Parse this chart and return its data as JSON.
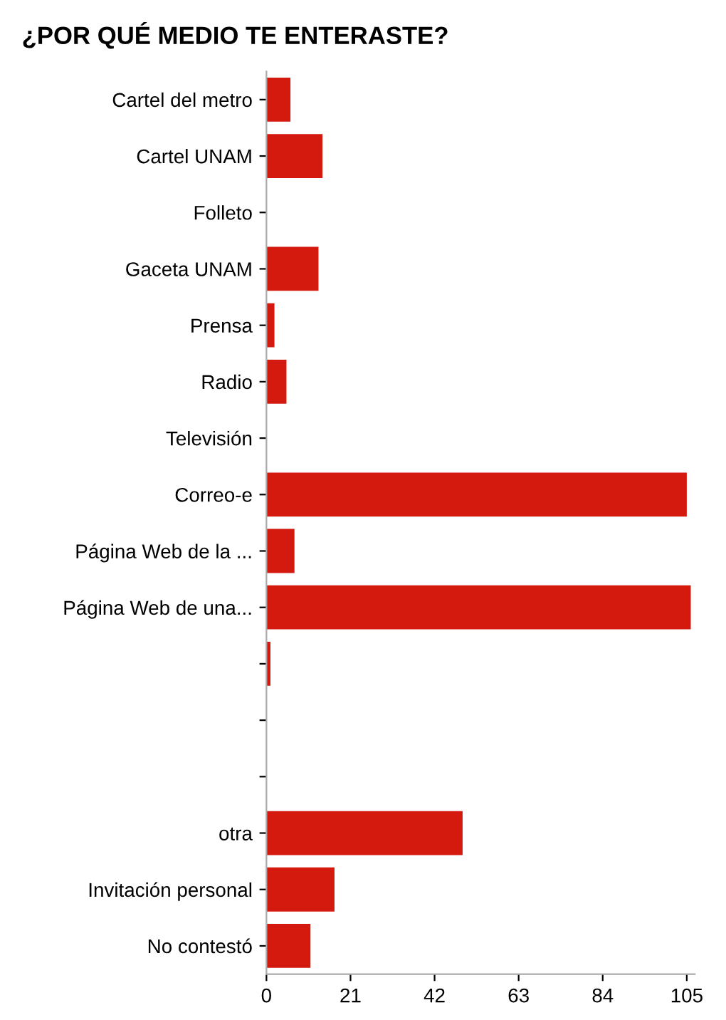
{
  "chart_data": {
    "type": "bar",
    "orientation": "horizontal",
    "title": "¿POR QUÉ MEDIO TE ENTERASTE?",
    "categories": [
      "Cartel del metro",
      "Cartel UNAM",
      "Folleto",
      "Gaceta UNAM",
      "Prensa",
      "Radio",
      "Televisión",
      "Correo-e",
      "Página Web de la ...",
      "Página Web de una...",
      null,
      null,
      null,
      "otra",
      "Invitación personal",
      "No contestó"
    ],
    "values": [
      6,
      14,
      0,
      13,
      2,
      5,
      0,
      105,
      7,
      106,
      1,
      0,
      0,
      49,
      17,
      11
    ],
    "color": "#d41a0f",
    "xlim": [
      0,
      107
    ],
    "xticks": [
      0,
      21,
      42,
      63,
      84,
      105
    ],
    "grid": false
  }
}
